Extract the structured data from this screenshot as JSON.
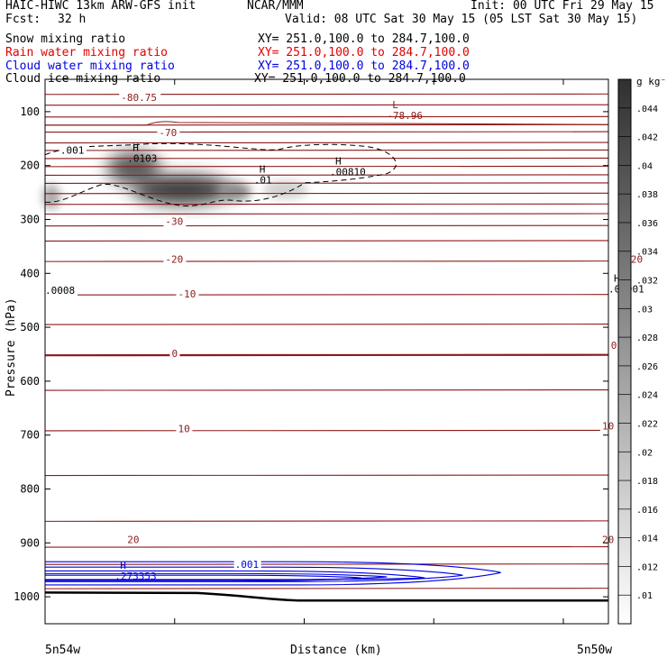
{
  "header": {
    "model": "HAIC-HIWC 13km ARW-GFS init",
    "org": "NCAR/MMM",
    "init": "Init: 00 UTC Fri 29 May 15",
    "fcst_label": "Fcst:",
    "fcst_value": "32 h",
    "valid": "Valid: 08 UTC Sat 30 May 15 (05 LST Sat 30 May 15)",
    "fields": [
      {
        "name": "Snow mixing ratio",
        "xy": "XY= 251.0,100.0 to 284.7,100.0",
        "color": "#000000"
      },
      {
        "name": "Rain water mixing ratio",
        "xy": "XY= 251.0,100.0 to 284.7,100.0",
        "color": "#e00000"
      },
      {
        "name": "Cloud water mixing ratio",
        "xy": "XY= 251.0,100.0 to 284.7,100.0",
        "color": "#0000e0"
      },
      {
        "name": "Cloud ice mixing ratio",
        "xy": "XY= 251.0,100.0 to 284.7,100.0",
        "color": "#000000"
      }
    ]
  },
  "chart_data": {
    "type": "heatmap",
    "ylabel": "Pressure (hPa)",
    "xlabel": "Distance (km)",
    "x_left_label": "5n54w",
    "x_right_label": "5n50w",
    "y_ticks": [
      100,
      200,
      300,
      400,
      500,
      600,
      700,
      800,
      900,
      1000
    ],
    "ylim": [
      1050,
      40
    ],
    "xlim": [
      0,
      445
    ],
    "colorbar": {
      "unit": "g kg⁻¹",
      "ticks": [
        ".044",
        ".042",
        ".04",
        ".038",
        ".036",
        ".034",
        ".032",
        ".03",
        ".028",
        ".026",
        ".024",
        ".022",
        ".02",
        ".018",
        ".016",
        ".014",
        ".012",
        ".01"
      ]
    },
    "temperature_contours": [
      {
        "label": "-80.75",
        "x": 60,
        "p": 80
      },
      {
        "label": "-70",
        "x": 90,
        "p": 145
      },
      {
        "label": "-30",
        "x": 95,
        "p": 310
      },
      {
        "label": "-20",
        "x": 95,
        "p": 380
      },
      {
        "label": "-20",
        "x": 458,
        "p": 380
      },
      {
        "label": "-10",
        "x": 105,
        "p": 445
      },
      {
        "label": "0",
        "x": 100,
        "p": 555
      },
      {
        "label": "0",
        "x": 447,
        "p": 540
      },
      {
        "label": "10",
        "x": 105,
        "p": 695
      },
      {
        "label": "10",
        "x": 440,
        "p": 690
      },
      {
        "label": "20",
        "x": 65,
        "p": 900
      },
      {
        "label": "20",
        "x": 440,
        "p": 900
      }
    ],
    "extrema": [
      {
        "kind": "L",
        "value": "-78.96",
        "x": 270,
        "p": 110,
        "color": "#8b1a1a"
      },
      {
        "kind": "H",
        "value": ".0103",
        "x": 65,
        "p": 190,
        "color": "#000000"
      },
      {
        "kind": "H",
        "value": ".01",
        "x": 165,
        "p": 230,
        "color": "#000000"
      },
      {
        "kind": "H",
        "value": ".00810",
        "x": 225,
        "p": 215,
        "color": "#000000"
      },
      {
        "kind": "H",
        "value": ".00001",
        "x": 445,
        "p": 432,
        "color": "#000000"
      },
      {
        "kind": "H",
        "value": ".273353",
        "x": 55,
        "p": 965,
        "color": "#0000e0"
      }
    ],
    "contour_labels": [
      {
        "label": ".001",
        "x": 12,
        "p": 178,
        "color": "#000000"
      },
      {
        "label": ".0008",
        "x": 0,
        "p": 438,
        "color": "#000000"
      },
      {
        "label": ".001",
        "x": 150,
        "p": 946,
        "color": "#0000e0"
      }
    ],
    "isotherm_levels_hpa": [
      68,
      88,
      110,
      125,
      138,
      158,
      172,
      187,
      202,
      218,
      233,
      252,
      272,
      290,
      312,
      340,
      378,
      440,
      495,
      552,
      617,
      692,
      775,
      860,
      908,
      940,
      985
    ]
  }
}
